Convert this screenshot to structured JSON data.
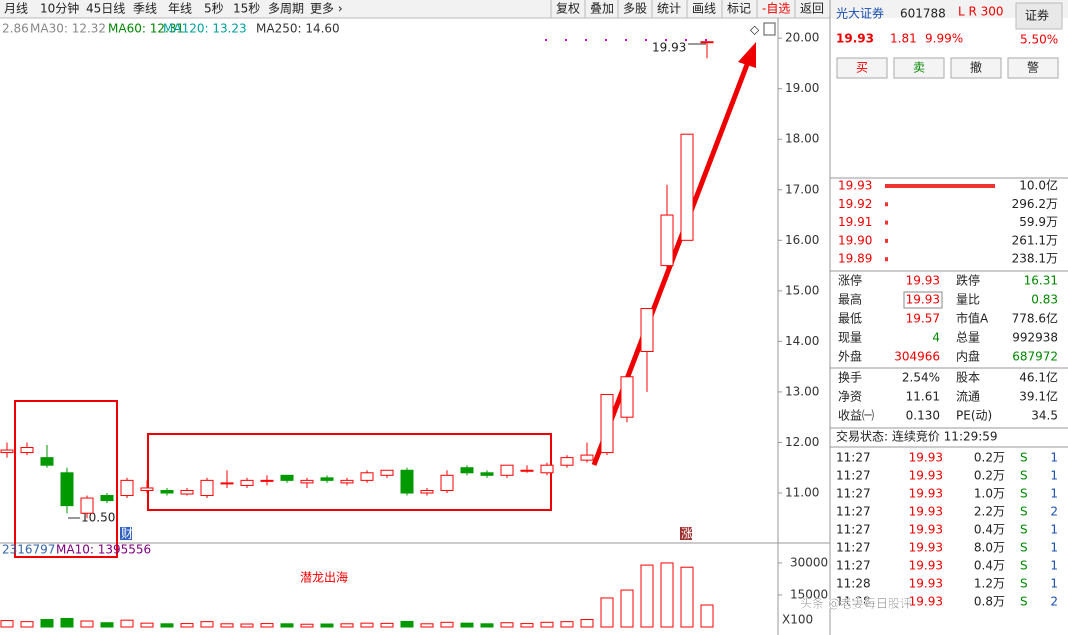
{
  "toolbar": {
    "left": [
      "月线",
      "10分钟",
      "45日线",
      "季线",
      "年线",
      "5秒",
      "15秒",
      "多周期",
      "更多 ›"
    ],
    "right": [
      "复权",
      "叠加",
      "多股",
      "统计",
      "画线",
      "标记",
      "-自选",
      "返回"
    ]
  },
  "ma_legend": [
    "2.86",
    "MA30: 12.32",
    "MA60: 12.31",
    "MA120: 13.23",
    "MA250: 14.60"
  ],
  "annotations": {
    "limit_price": "19.93",
    "low_price": "10.50",
    "badge_cai": "财",
    "badge_zhang": "涨",
    "slogan": "潜龙出海"
  },
  "volume_legend": [
    "2316797",
    "MA10: 1395556"
  ],
  "watermark": "头条 @老妻每日股评",
  "chart_data": [
    {
      "type": "candlestick",
      "up_color": "#ff0000",
      "down_color": "#009900",
      "open": [
        11.8,
        11.8,
        11.7,
        11.4,
        10.6,
        10.95,
        10.95,
        11.05,
        11.05,
        10.98,
        10.95,
        11.2,
        11.15,
        11.25,
        11.35,
        11.2,
        11.3,
        11.2,
        11.25,
        11.35,
        11.45,
        11.0,
        11.05,
        11.5,
        11.4,
        11.35,
        11.45,
        11.4,
        11.55,
        11.65,
        11.8,
        12.5,
        13.8,
        15.5,
        16.0,
        19.93
      ],
      "high": [
        12.0,
        12.0,
        11.95,
        11.5,
        10.95,
        11.0,
        11.3,
        11.25,
        11.1,
        11.1,
        11.3,
        11.45,
        11.3,
        11.35,
        11.35,
        11.3,
        11.35,
        11.3,
        11.45,
        11.45,
        11.5,
        11.1,
        11.45,
        11.55,
        11.45,
        11.55,
        11.55,
        11.6,
        11.75,
        12.0,
        12.95,
        13.3,
        14.65,
        17.1,
        18.1,
        19.93
      ],
      "low": [
        11.7,
        11.75,
        11.5,
        10.6,
        10.5,
        10.8,
        10.9,
        11.0,
        10.95,
        10.95,
        10.9,
        11.1,
        11.1,
        11.15,
        11.2,
        11.1,
        11.2,
        11.15,
        11.2,
        11.3,
        10.95,
        10.95,
        11.0,
        11.35,
        11.3,
        11.3,
        11.4,
        11.35,
        11.5,
        11.6,
        11.75,
        12.4,
        13.0,
        15.3,
        16.0,
        19.6
      ],
      "close": [
        11.85,
        11.9,
        11.55,
        10.75,
        10.9,
        10.85,
        11.25,
        11.1,
        11.0,
        11.05,
        11.25,
        11.2,
        11.25,
        11.25,
        11.25,
        11.25,
        11.25,
        11.25,
        11.4,
        11.45,
        11.0,
        11.05,
        11.35,
        11.4,
        11.35,
        11.55,
        11.45,
        11.55,
        11.7,
        11.75,
        12.95,
        13.3,
        14.65,
        16.5,
        18.1,
        19.93
      ],
      "ylim": [
        10.07,
        20.32
      ],
      "yticks": [
        {
          "value": 11,
          "label": "11.00"
        },
        {
          "value": 12,
          "label": "12.00"
        },
        {
          "value": 13,
          "label": "13.00"
        },
        {
          "value": 14,
          "label": "14.00"
        },
        {
          "value": 15,
          "label": "15.00"
        },
        {
          "value": 16,
          "label": "16.00"
        },
        {
          "value": 17,
          "label": "17.00"
        },
        {
          "value": 18,
          "label": "18.00"
        },
        {
          "value": 19,
          "label": "19.00"
        },
        {
          "value": 20,
          "label": "20.00"
        }
      ]
    },
    {
      "type": "bar",
      "values": [
        3000,
        2500,
        3500,
        4000,
        2800,
        2000,
        3200,
        1800,
        1500,
        1600,
        2500,
        1500,
        1400,
        1600,
        1500,
        1300,
        1400,
        1500,
        1800,
        1700,
        2600,
        1500,
        2200,
        1800,
        1500,
        2000,
        1600,
        2200,
        2500,
        3500,
        13600,
        17300,
        29000,
        30000,
        28000,
        10300
      ],
      "ylim": [
        0,
        37000
      ],
      "yticks": [
        15000,
        30000
      ],
      "unit_label": "X100"
    }
  ],
  "quote": {
    "name": "光大证券",
    "code": "601788",
    "flags": "L R 300",
    "sector": "证券",
    "price": "19.93",
    "change": "1.81",
    "change_pct": "9.99%",
    "sector_pct": "5.50%",
    "buttons": [
      "买",
      "卖",
      "撤",
      "警"
    ],
    "book": [
      [
        "19.93",
        "10.0亿"
      ],
      [
        "19.92",
        "296.2万"
      ],
      [
        "19.91",
        "59.9万"
      ],
      [
        "19.90",
        "261.1万"
      ],
      [
        "19.89",
        "238.1万"
      ]
    ],
    "stats": [
      [
        "涨停",
        "19.93",
        "跌停",
        "16.31"
      ],
      [
        "最高",
        "19.93",
        "量比",
        "0.83"
      ],
      [
        "最低",
        "19.57",
        "市值A",
        "778.6亿"
      ],
      [
        "现量",
        "4",
        "总量",
        "992938"
      ],
      [
        "外盘",
        "304966",
        "内盘",
        "687972"
      ]
    ],
    "stats2": [
      [
        "换手",
        "2.54%",
        "股本",
        "46.1亿"
      ],
      [
        "净资",
        "11.61",
        "流通",
        "39.1亿"
      ],
      [
        "收益㈠",
        "0.130",
        "PE(动)",
        "34.5"
      ]
    ],
    "status": "交易状态: 连续竞价 11:29:59",
    "trades": [
      [
        "11:27",
        "19.93",
        "0.2万",
        "S",
        "1"
      ],
      [
        "11:27",
        "19.93",
        "0.2万",
        "S",
        "1"
      ],
      [
        "11:27",
        "19.93",
        "1.0万",
        "S",
        "1"
      ],
      [
        "11:27",
        "19.93",
        "2.2万",
        "S",
        "2"
      ],
      [
        "11:27",
        "19.93",
        "0.4万",
        "S",
        "1"
      ],
      [
        "11:27",
        "19.93",
        "8.0万",
        "S",
        "1"
      ],
      [
        "11:27",
        "19.93",
        "0.4万",
        "S",
        "1"
      ],
      [
        "11:28",
        "19.93",
        "1.2万",
        "S",
        "1"
      ],
      [
        "11:28",
        "19.93",
        "0.8万",
        "S",
        "2"
      ]
    ]
  }
}
